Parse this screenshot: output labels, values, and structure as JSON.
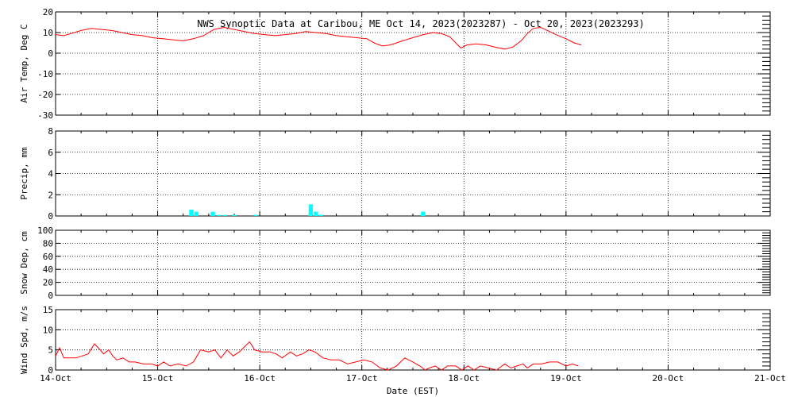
{
  "title": "NWS Synoptic Data at Caribou, ME   Oct 14, 2023(2023287) - Oct 20, 2023(2023293)",
  "xlabel": "Date (EST)",
  "x_ticks": [
    "14-Oct",
    "15-Oct",
    "16-Oct",
    "17-Oct",
    "18-Oct",
    "19-Oct",
    "20-Oct",
    "21-Oct"
  ],
  "colors": {
    "line": "#ff0000",
    "bar": "#00ffff",
    "axis": "#000000",
    "grid": "#000000"
  },
  "chart_data": [
    {
      "type": "line",
      "ylabel": "Air Temp, Deg C",
      "ylim": [
        -30,
        20
      ],
      "yticks": [
        -30,
        -20,
        -10,
        0,
        10,
        20
      ],
      "xlim": [
        0,
        7
      ],
      "x_unit": "days since 14-Oct 00:00 EST",
      "grid": true,
      "series": [
        {
          "values": [
            [
              0.0,
              9.0
            ],
            [
              0.08,
              8.5
            ],
            [
              0.15,
              9.5
            ],
            [
              0.25,
              11.0
            ],
            [
              0.35,
              12.0
            ],
            [
              0.45,
              11.5
            ],
            [
              0.55,
              11.0
            ],
            [
              0.65,
              10.0
            ],
            [
              0.75,
              9.0
            ],
            [
              0.85,
              8.5
            ],
            [
              0.95,
              7.5
            ],
            [
              1.05,
              7.0
            ],
            [
              1.15,
              6.5
            ],
            [
              1.25,
              6.0
            ],
            [
              1.35,
              7.0
            ],
            [
              1.45,
              8.5
            ],
            [
              1.55,
              11.5
            ],
            [
              1.65,
              12.5
            ],
            [
              1.75,
              11.5
            ],
            [
              1.85,
              10.5
            ],
            [
              1.95,
              9.5
            ],
            [
              2.05,
              9.0
            ],
            [
              2.15,
              8.5
            ],
            [
              2.25,
              9.0
            ],
            [
              2.35,
              9.5
            ],
            [
              2.45,
              10.5
            ],
            [
              2.55,
              10.0
            ],
            [
              2.65,
              9.5
            ],
            [
              2.75,
              8.5
            ],
            [
              2.85,
              8.0
            ],
            [
              2.95,
              7.5
            ],
            [
              3.05,
              7.0
            ],
            [
              3.12,
              5.0
            ],
            [
              3.2,
              3.5
            ],
            [
              3.28,
              4.0
            ],
            [
              3.4,
              6.0
            ],
            [
              3.5,
              7.5
            ],
            [
              3.6,
              9.0
            ],
            [
              3.7,
              10.0
            ],
            [
              3.78,
              9.5
            ],
            [
              3.86,
              8.0
            ],
            [
              3.92,
              5.0
            ],
            [
              3.97,
              2.5
            ],
            [
              4.03,
              4.0
            ],
            [
              4.12,
              4.5
            ],
            [
              4.22,
              4.0
            ],
            [
              4.3,
              3.0
            ],
            [
              4.4,
              2.0
            ],
            [
              4.48,
              3.0
            ],
            [
              4.56,
              6.0
            ],
            [
              4.62,
              9.5
            ],
            [
              4.68,
              12.0
            ],
            [
              4.75,
              12.5
            ],
            [
              4.82,
              11.0
            ],
            [
              4.9,
              9.0
            ],
            [
              5.0,
              7.0
            ],
            [
              5.08,
              5.0
            ],
            [
              5.15,
              4.0
            ]
          ]
        }
      ]
    },
    {
      "type": "bar",
      "ylabel": "Precip, mm",
      "ylim": [
        0,
        8
      ],
      "yticks": [
        0,
        2,
        4,
        6,
        8
      ],
      "xlim": [
        0,
        7
      ],
      "x_unit": "days since 14-Oct 00:00 EST",
      "grid": true,
      "bar_width_days": 0.042,
      "values": [
        [
          1.33,
          0.6
        ],
        [
          1.38,
          0.4
        ],
        [
          1.54,
          0.4
        ],
        [
          1.6,
          0.1
        ],
        [
          1.66,
          0.1
        ],
        [
          1.75,
          0.1
        ],
        [
          1.96,
          0.1
        ],
        [
          2.5,
          1.1
        ],
        [
          2.55,
          0.4
        ],
        [
          2.6,
          0.1
        ],
        [
          3.6,
          0.4
        ]
      ]
    },
    {
      "type": "line",
      "ylabel": "Snow Dep, cm",
      "ylim": [
        0,
        100
      ],
      "yticks": [
        0,
        20,
        40,
        60,
        80,
        100
      ],
      "xlim": [
        0,
        7
      ],
      "x_unit": "days since 14-Oct 00:00 EST",
      "grid": true,
      "series": []
    },
    {
      "type": "line",
      "ylabel": "Wind Spd, m/s",
      "ylim": [
        0,
        15
      ],
      "yticks": [
        0,
        5,
        10,
        15
      ],
      "xlim": [
        0,
        7
      ],
      "x_unit": "days since 14-Oct 00:00 EST",
      "grid": true,
      "series": [
        {
          "values": [
            [
              0.0,
              3.5
            ],
            [
              0.04,
              5.5
            ],
            [
              0.08,
              3.0
            ],
            [
              0.13,
              3.0
            ],
            [
              0.2,
              3.0
            ],
            [
              0.26,
              3.5
            ],
            [
              0.32,
              4.0
            ],
            [
              0.38,
              6.5
            ],
            [
              0.42,
              5.5
            ],
            [
              0.47,
              4.0
            ],
            [
              0.52,
              5.0
            ],
            [
              0.56,
              3.5
            ],
            [
              0.6,
              2.5
            ],
            [
              0.66,
              3.0
            ],
            [
              0.72,
              2.0
            ],
            [
              0.78,
              2.0
            ],
            [
              0.86,
              1.5
            ],
            [
              0.94,
              1.5
            ],
            [
              1.0,
              1.0
            ],
            [
              1.06,
              2.0
            ],
            [
              1.12,
              1.0
            ],
            [
              1.2,
              1.5
            ],
            [
              1.28,
              1.0
            ],
            [
              1.35,
              2.0
            ],
            [
              1.42,
              5.0
            ],
            [
              1.5,
              4.5
            ],
            [
              1.56,
              5.0
            ],
            [
              1.62,
              3.0
            ],
            [
              1.68,
              5.0
            ],
            [
              1.74,
              3.5
            ],
            [
              1.8,
              4.5
            ],
            [
              1.86,
              6.0
            ],
            [
              1.9,
              7.0
            ],
            [
              1.95,
              5.0
            ],
            [
              2.02,
              4.5
            ],
            [
              2.1,
              4.5
            ],
            [
              2.16,
              4.0
            ],
            [
              2.22,
              3.0
            ],
            [
              2.3,
              4.5
            ],
            [
              2.36,
              3.5
            ],
            [
              2.42,
              4.0
            ],
            [
              2.48,
              5.0
            ],
            [
              2.54,
              4.5
            ],
            [
              2.62,
              3.0
            ],
            [
              2.7,
              2.5
            ],
            [
              2.78,
              2.5
            ],
            [
              2.86,
              1.5
            ],
            [
              2.94,
              2.0
            ],
            [
              3.02,
              2.5
            ],
            [
              3.1,
              2.0
            ],
            [
              3.18,
              0.5
            ],
            [
              3.26,
              0.0
            ],
            [
              3.34,
              1.0
            ],
            [
              3.42,
              3.0
            ],
            [
              3.5,
              2.0
            ],
            [
              3.58,
              0.8
            ],
            [
              3.62,
              0.0
            ],
            [
              3.66,
              0.5
            ],
            [
              3.72,
              1.0
            ],
            [
              3.78,
              0.0
            ],
            [
              3.84,
              1.0
            ],
            [
              3.92,
              1.0
            ],
            [
              3.98,
              0.0
            ],
            [
              4.04,
              1.0
            ],
            [
              4.1,
              0.0
            ],
            [
              4.16,
              1.0
            ],
            [
              4.24,
              0.5
            ],
            [
              4.32,
              0.0
            ],
            [
              4.4,
              1.5
            ],
            [
              4.46,
              0.5
            ],
            [
              4.52,
              1.0
            ],
            [
              4.58,
              1.5
            ],
            [
              4.62,
              0.5
            ],
            [
              4.68,
              1.5
            ],
            [
              4.76,
              1.5
            ],
            [
              4.84,
              2.0
            ],
            [
              4.92,
              2.0
            ],
            [
              5.0,
              1.0
            ],
            [
              5.06,
              1.5
            ],
            [
              5.12,
              1.0
            ]
          ]
        }
      ]
    }
  ]
}
